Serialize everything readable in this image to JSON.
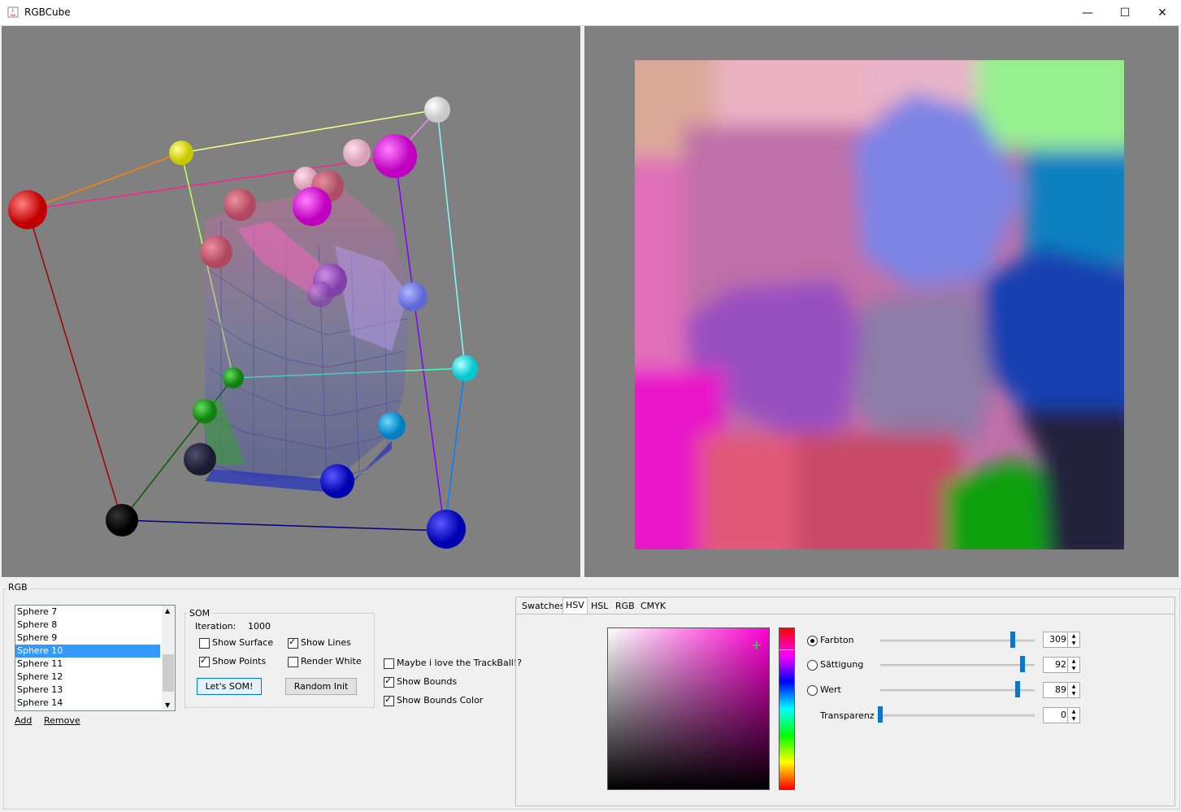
{
  "window": {
    "title": "RGBCube",
    "minimize": "—",
    "maximize": "☐",
    "close": "✕"
  },
  "group_rgb": {
    "legend": "RGB"
  },
  "sphere_list": {
    "items": [
      "Sphere 7",
      "Sphere 8",
      "Sphere 9",
      "Sphere 10",
      "Sphere 11",
      "Sphere 12",
      "Sphere 13",
      "Sphere 14"
    ],
    "selected": "Sphere 10",
    "add_label": "Add",
    "remove_label": "Remove"
  },
  "som": {
    "legend": "SOM",
    "iteration_label": "Iteration:",
    "iteration_value": "1000",
    "show_surface": "Show Surface",
    "show_lines": "Show Lines",
    "show_points": "Show Points",
    "render_white": "Render White",
    "lets_som": "Let's SOM!",
    "random_init": "Random Init"
  },
  "options": {
    "trackball": "Maybe i love the TrackBall!?",
    "show_bounds": "Show Bounds",
    "show_bounds_color": "Show Bounds Color"
  },
  "color_chooser": {
    "tabs": [
      "Swatches",
      "HSV",
      "HSL",
      "RGB",
      "CMYK"
    ],
    "active_tab": "HSV",
    "farbton_label": "Farbton",
    "farbton_value": "309",
    "saettigung_label": "Sättigung",
    "saettigung_value": "92",
    "wert_label": "Wert",
    "wert_value": "89",
    "transparenz_label": "Transparenz",
    "transparenz_value": "0",
    "selected_color": "#e312c8"
  }
}
